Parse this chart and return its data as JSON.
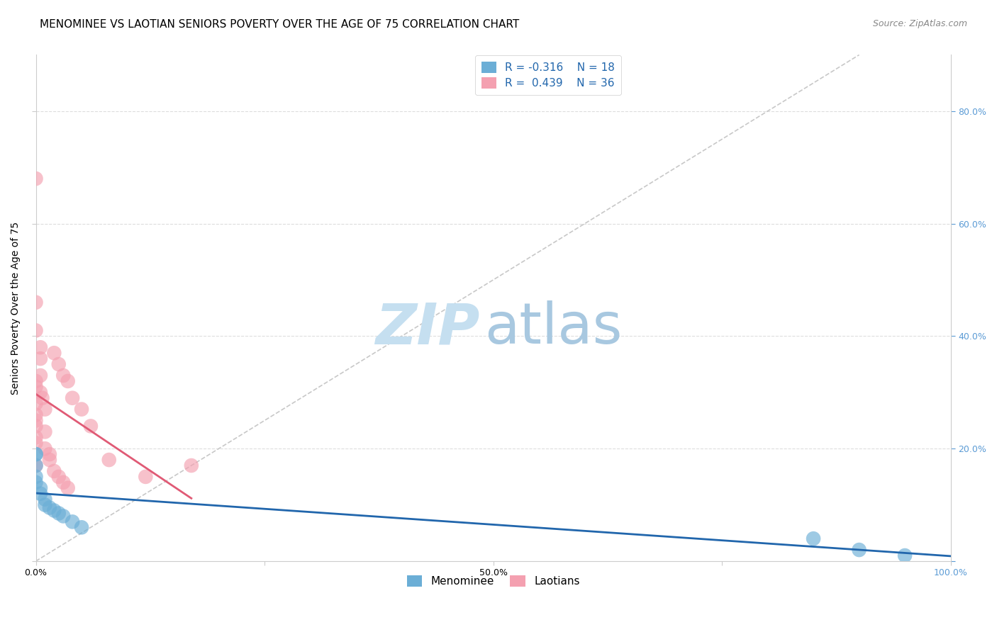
{
  "title": "MENOMINEE VS LAOTIAN SENIORS POVERTY OVER THE AGE OF 75 CORRELATION CHART",
  "source": "Source: ZipAtlas.com",
  "ylabel": "Seniors Poverty Over the Age of 75",
  "xlim": [
    0,
    100
  ],
  "ylim": [
    0,
    90
  ],
  "xticks": [
    0,
    25,
    50,
    75,
    100
  ],
  "xtick_labels": [
    "0.0%",
    "",
    "50.0%",
    "",
    "100.0%"
  ],
  "ytick_vals": [
    0,
    20,
    40,
    60,
    80
  ],
  "ytick_labels_right": [
    "",
    "20.0%",
    "40.0%",
    "60.0%",
    "80.0%"
  ],
  "blue_color": "#6baed6",
  "pink_color": "#f4a0b0",
  "blue_line_color": "#2166ac",
  "pink_line_color": "#e05a75",
  "identity_line_color": "#c8c8c8",
  "menominee_x": [
    0,
    0,
    0,
    0,
    0,
    0.5,
    0.5,
    1.0,
    1.0,
    1.5,
    2.0,
    2.5,
    3.0,
    4.0,
    5.0,
    85,
    90,
    95
  ],
  "menominee_y": [
    19,
    19,
    17,
    15,
    14,
    13,
    12,
    11,
    10,
    9.5,
    9.0,
    8.5,
    8.0,
    7.0,
    6.0,
    4.0,
    2.0,
    1.0
  ],
  "laotian_x": [
    0,
    0,
    0,
    0,
    0,
    0,
    0,
    0,
    0,
    0,
    0,
    0,
    0.5,
    0.5,
    0.5,
    0.5,
    0.7,
    1.0,
    1.0,
    1.0,
    1.5,
    1.5,
    2.0,
    2.0,
    2.5,
    2.5,
    3.0,
    3.0,
    3.5,
    3.5,
    4.0,
    5.0,
    6.0,
    8.0,
    12.0,
    17.0
  ],
  "laotian_y": [
    68,
    46,
    41,
    32,
    31,
    28,
    26,
    25,
    24,
    22,
    21,
    17,
    38,
    36,
    33,
    30,
    29,
    27,
    23,
    20,
    19,
    18,
    37,
    16,
    35,
    15,
    33,
    14,
    32,
    13,
    29,
    27,
    24,
    18,
    15,
    17
  ],
  "grid_color": "#dddddd",
  "background_color": "#ffffff",
  "title_fontsize": 11,
  "axis_label_fontsize": 10,
  "tick_fontsize": 9,
  "watermark_color_zip": "#c5dff0",
  "watermark_color_atlas": "#a8c8e0",
  "source_fontsize": 9,
  "right_tick_color": "#5b9bd5",
  "legend_label_color": "#2166ac"
}
